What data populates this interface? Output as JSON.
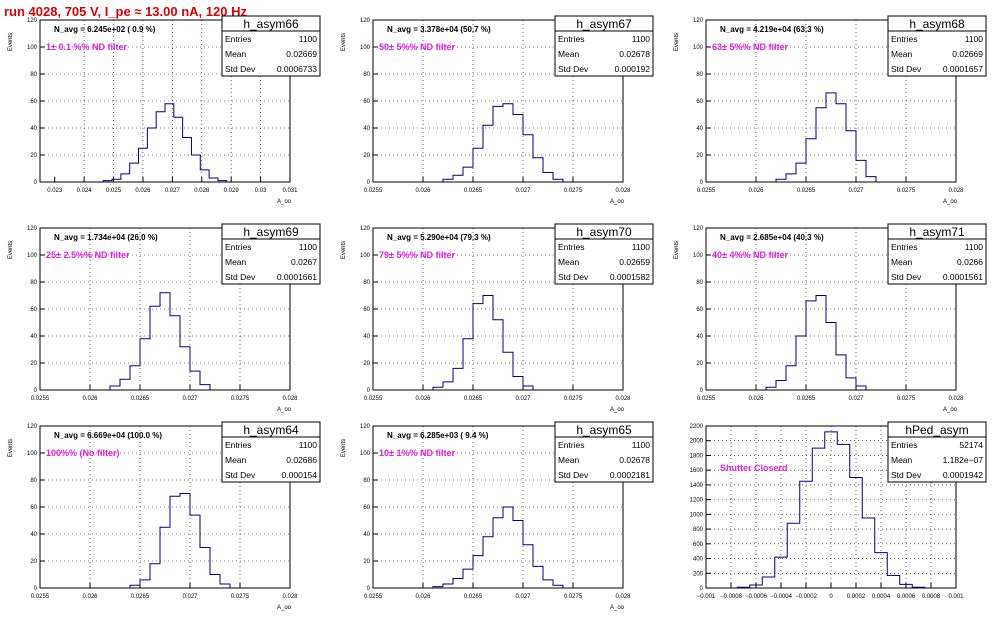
{
  "run_title": "run 4028,   705 V, I_pe ≈ 13.00 nA, 120 Hz",
  "colors": {
    "title": "#e00000",
    "annotation": "#e020e0",
    "histogram": "#000080",
    "grid": "#000000"
  },
  "chart_data": [
    {
      "type": "bar",
      "title": "h_asym66",
      "navg": "N_avg = 6.245e+02 ( 0.9 %)",
      "note": "1± 0.1 %% ND filter",
      "stats": {
        "entries": "1100",
        "mean": "0.02669",
        "std": "0.0006733"
      },
      "xlabel": "A_oo",
      "ylabel": "Events",
      "xlim": [
        0.0225,
        0.031
      ],
      "ylim": [
        0,
        120
      ],
      "xticks": [
        0.023,
        0.024,
        0.025,
        0.026,
        0.027,
        0.028,
        0.029,
        0.03,
        0.031
      ],
      "xtick_labels": [
        "0.023",
        "0.024",
        "0.025",
        "0.026",
        "0.027",
        "0.028",
        "0.029",
        "0.03",
        "0.031"
      ],
      "yticks": [
        0,
        20,
        40,
        60,
        80,
        100,
        120
      ],
      "ytick_labels": [
        "0",
        "20",
        "40",
        "60",
        "80",
        "100",
        "120"
      ],
      "hist_x": [
        0.0248,
        0.0251,
        0.0254,
        0.0257,
        0.026,
        0.0263,
        0.0266,
        0.0269,
        0.0272,
        0.0275,
        0.0278,
        0.0281,
        0.0284,
        0.0287
      ],
      "hist_y": [
        1,
        2,
        6,
        14,
        25,
        40,
        52,
        58,
        48,
        33,
        20,
        9,
        3,
        1
      ]
    },
    {
      "type": "bar",
      "title": "h_asym67",
      "navg": "N_avg = 3.378e+04 (50.7 %)",
      "note": "50± 5%% ND filter",
      "stats": {
        "entries": "1100",
        "mean": "0.02678",
        "std": "0.000192"
      },
      "xlabel": "A_oo",
      "ylabel": "Events",
      "xlim": [
        0.0255,
        0.028
      ],
      "ylim": [
        0,
        120
      ],
      "xticks": [
        0.0255,
        0.026,
        0.0265,
        0.027,
        0.0275,
        0.028
      ],
      "xtick_labels": [
        "0.0255",
        "0.026",
        "0.0265",
        "0.027",
        "0.0275",
        "0.028"
      ],
      "yticks": [
        0,
        20,
        40,
        60,
        80,
        100,
        120
      ],
      "ytick_labels": [
        "0",
        "20",
        "40",
        "60",
        "80",
        "100",
        "120"
      ],
      "hist_x": [
        0.02625,
        0.02635,
        0.02645,
        0.02655,
        0.02665,
        0.02675,
        0.02685,
        0.02695,
        0.02705,
        0.02715,
        0.02725,
        0.02735
      ],
      "hist_y": [
        2,
        5,
        11,
        25,
        42,
        56,
        58,
        50,
        35,
        18,
        7,
        2
      ]
    },
    {
      "type": "bar",
      "title": "h_asym68",
      "navg": "N_avg = 4.219e+04 (63.3 %)",
      "note": "63± 5%% ND filter",
      "stats": {
        "entries": "1100",
        "mean": "0.02669",
        "std": "0.0001657"
      },
      "xlabel": "A_oo",
      "ylabel": "Events",
      "xlim": [
        0.0255,
        0.028
      ],
      "ylim": [
        0,
        120
      ],
      "xticks": [
        0.0255,
        0.026,
        0.0265,
        0.027,
        0.0275,
        0.028
      ],
      "xtick_labels": [
        "0.0255",
        "0.026",
        "0.0265",
        "0.027",
        "0.0275",
        "0.028"
      ],
      "yticks": [
        0,
        20,
        40,
        60,
        80,
        100,
        120
      ],
      "ytick_labels": [
        "0",
        "20",
        "40",
        "60",
        "80",
        "100",
        "120"
      ],
      "hist_x": [
        0.02625,
        0.02635,
        0.02645,
        0.02655,
        0.02665,
        0.02675,
        0.02685,
        0.02695,
        0.02705,
        0.02715
      ],
      "hist_y": [
        2,
        6,
        14,
        32,
        55,
        66,
        58,
        38,
        16,
        4
      ]
    },
    {
      "type": "bar",
      "title": "h_asym69",
      "navg": "N_avg = 1.734e+04 (26.0 %)",
      "note": "25± 2.5%% ND filter",
      "stats": {
        "entries": "1100",
        "mean": "0.0267",
        "std": "0.0001661"
      },
      "xlabel": "A_oo",
      "ylabel": "Events",
      "xlim": [
        0.0255,
        0.028
      ],
      "ylim": [
        0,
        120
      ],
      "xticks": [
        0.0255,
        0.026,
        0.0265,
        0.027,
        0.0275,
        0.028
      ],
      "xtick_labels": [
        "0.0255",
        "0.026",
        "0.0265",
        "0.027",
        "0.0275",
        "0.028"
      ],
      "yticks": [
        0,
        20,
        40,
        60,
        80,
        100,
        120
      ],
      "ytick_labels": [
        "0",
        "20",
        "40",
        "60",
        "80",
        "100",
        "120"
      ],
      "hist_x": [
        0.02625,
        0.02635,
        0.02645,
        0.02655,
        0.02665,
        0.02675,
        0.02685,
        0.02695,
        0.02705,
        0.02715
      ],
      "hist_y": [
        3,
        8,
        18,
        38,
        62,
        72,
        55,
        32,
        14,
        4
      ]
    },
    {
      "type": "bar",
      "title": "h_asym70",
      "navg": "N_avg = 5.290e+04 (79.3 %)",
      "note": "79± 5%% ND filter",
      "stats": {
        "entries": "1100",
        "mean": "0.02659",
        "std": "0.0001582"
      },
      "xlabel": "A_oo",
      "ylabel": "Events",
      "xlim": [
        0.0255,
        0.028
      ],
      "ylim": [
        0,
        120
      ],
      "xticks": [
        0.0255,
        0.026,
        0.0265,
        0.027,
        0.0275,
        0.028
      ],
      "xtick_labels": [
        "0.0255",
        "0.026",
        "0.0265",
        "0.027",
        "0.0275",
        "0.028"
      ],
      "yticks": [
        0,
        20,
        40,
        60,
        80,
        100,
        120
      ],
      "ytick_labels": [
        "0",
        "20",
        "40",
        "60",
        "80",
        "100",
        "120"
      ],
      "hist_x": [
        0.02615,
        0.02625,
        0.02635,
        0.02645,
        0.02655,
        0.02665,
        0.02675,
        0.02685,
        0.02695,
        0.02705
      ],
      "hist_y": [
        2,
        6,
        16,
        38,
        64,
        70,
        52,
        28,
        10,
        3
      ]
    },
    {
      "type": "bar",
      "title": "h_asym71",
      "navg": "N_avg = 2.685e+04 (40.3 %)",
      "note": "40± 4%% ND filter",
      "stats": {
        "entries": "1100",
        "mean": "0.0266",
        "std": "0.0001561"
      },
      "xlabel": "A_oo",
      "ylabel": "Events",
      "xlim": [
        0.0255,
        0.028
      ],
      "ylim": [
        0,
        120
      ],
      "xticks": [
        0.0255,
        0.026,
        0.0265,
        0.027,
        0.0275,
        0.028
      ],
      "xtick_labels": [
        "0.0255",
        "0.026",
        "0.0265",
        "0.027",
        "0.0275",
        "0.028"
      ],
      "yticks": [
        0,
        20,
        40,
        60,
        80,
        100,
        120
      ],
      "ytick_labels": [
        "0",
        "20",
        "40",
        "60",
        "80",
        "100",
        "120"
      ],
      "hist_x": [
        0.02615,
        0.02625,
        0.02635,
        0.02645,
        0.02655,
        0.02665,
        0.02675,
        0.02685,
        0.02695,
        0.02705
      ],
      "hist_y": [
        2,
        7,
        18,
        40,
        66,
        70,
        50,
        26,
        9,
        3
      ]
    },
    {
      "type": "bar",
      "title": "h_asym64",
      "navg": "N_avg = 6.669e+04 (100.0 %)",
      "note": "100%% (No filter)",
      "stats": {
        "entries": "1100",
        "mean": "0.02686",
        "std": "0.000154"
      },
      "xlabel": "A_oo",
      "ylabel": "Events",
      "xlim": [
        0.0255,
        0.028
      ],
      "ylim": [
        0,
        120
      ],
      "xticks": [
        0.0255,
        0.026,
        0.0265,
        0.027,
        0.0275,
        0.028
      ],
      "xtick_labels": [
        "0.0255",
        "0.026",
        "0.0265",
        "0.027",
        "0.0275",
        "0.028"
      ],
      "yticks": [
        0,
        20,
        40,
        60,
        80,
        100,
        120
      ],
      "ytick_labels": [
        "0",
        "20",
        "40",
        "60",
        "80",
        "100",
        "120"
      ],
      "hist_x": [
        0.02645,
        0.02655,
        0.02665,
        0.02675,
        0.02685,
        0.02695,
        0.02705,
        0.02715,
        0.02725,
        0.02735
      ],
      "hist_y": [
        2,
        6,
        18,
        45,
        68,
        70,
        54,
        30,
        10,
        3
      ]
    },
    {
      "type": "bar",
      "title": "h_asym65",
      "navg": "N_avg = 6.285e+03 ( 9.4 %)",
      "note": "10± 1%% ND filter",
      "stats": {
        "entries": "1100",
        "mean": "0.02678",
        "std": "0.0002181"
      },
      "xlabel": "A_oo",
      "ylabel": "Events",
      "xlim": [
        0.0255,
        0.028
      ],
      "ylim": [
        0,
        120
      ],
      "xticks": [
        0.0255,
        0.026,
        0.0265,
        0.027,
        0.0275,
        0.028
      ],
      "xtick_labels": [
        "0.0255",
        "0.026",
        "0.0265",
        "0.027",
        "0.0275",
        "0.028"
      ],
      "yticks": [
        0,
        20,
        40,
        60,
        80,
        100,
        120
      ],
      "ytick_labels": [
        "0",
        "20",
        "40",
        "60",
        "80",
        "100",
        "120"
      ],
      "hist_x": [
        0.02615,
        0.02625,
        0.02635,
        0.02645,
        0.02655,
        0.02665,
        0.02675,
        0.02685,
        0.02695,
        0.02705,
        0.02715,
        0.02725,
        0.02735
      ],
      "hist_y": [
        1,
        3,
        7,
        14,
        24,
        38,
        52,
        60,
        50,
        32,
        16,
        6,
        2
      ]
    },
    {
      "type": "bar",
      "title": "hPed_asym",
      "navg": "",
      "note": "Shutter Closerd",
      "stats": {
        "entries": "52174",
        "mean": "1.182e−07",
        "std": "0.0001942"
      },
      "xlabel": "",
      "ylabel": "",
      "xlim": [
        -0.001,
        0.001
      ],
      "ylim": [
        0,
        2200
      ],
      "xticks": [
        -0.001,
        -0.0008,
        -0.0006,
        -0.0004,
        -0.0002,
        0,
        0.0002,
        0.0004,
        0.0006,
        0.0008,
        0.001
      ],
      "xtick_labels": [
        "−0.001",
        "−0.0008",
        "−0.0006",
        "−0.0004",
        "−0.0002",
        "0",
        "0.0002",
        "0.0004",
        "0.0006",
        "0.0008",
        "0.001"
      ],
      "yticks": [
        0,
        200,
        400,
        600,
        800,
        1000,
        1200,
        1400,
        1600,
        1800,
        2000,
        2200
      ],
      "ytick_labels": [
        "0",
        "200",
        "400",
        "600",
        "800",
        "1000",
        "1200",
        "1400",
        "1600",
        "1800",
        "2000",
        "2200"
      ],
      "hist_x": [
        -0.0007,
        -0.0006,
        -0.0005,
        -0.0004,
        -0.0003,
        -0.0002,
        -0.0001,
        0,
        0.0001,
        0.0002,
        0.0003,
        0.0004,
        0.0005,
        0.0006,
        0.0007
      ],
      "hist_y": [
        10,
        40,
        150,
        420,
        880,
        1450,
        1900,
        2120,
        1950,
        1500,
        950,
        480,
        170,
        50,
        10
      ]
    }
  ]
}
